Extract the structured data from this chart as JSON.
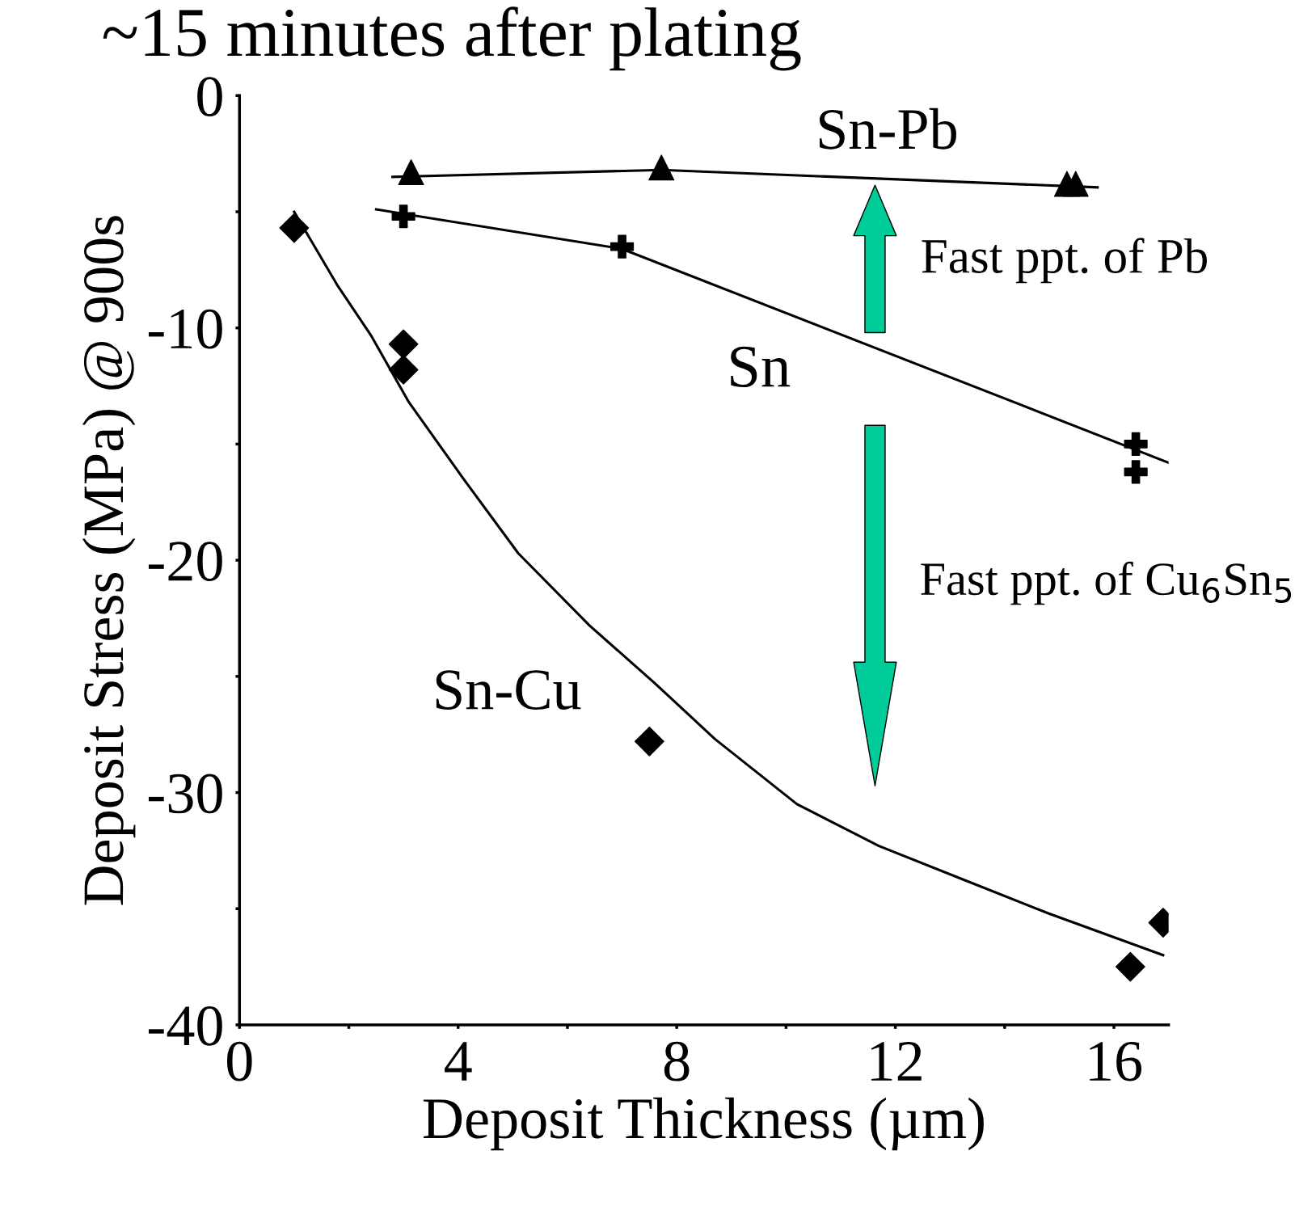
{
  "chart_data": {
    "type": "scatter",
    "title": "~15 minutes after plating",
    "xlabel": "Deposit Thickness (µm)",
    "ylabel": "Deposit Stress (MPa) @ 900s",
    "xlim": [
      0,
      17
    ],
    "ylim": [
      -40,
      0
    ],
    "xticks": [
      0,
      {
        "value": 2,
        "label": null
      },
      4,
      {
        "value": 6,
        "label": null
      },
      8,
      {
        "value": 10,
        "label": null
      },
      12,
      {
        "value": 14,
        "label": null
      },
      16
    ],
    "yticks": [
      -40,
      {
        "value": -35,
        "label": null
      },
      -30,
      {
        "value": -25,
        "label": null
      },
      -20,
      {
        "value": -15,
        "label": null
      },
      -10,
      {
        "value": -5,
        "label": null
      },
      0
    ],
    "grid": false,
    "legend": false,
    "series": [
      {
        "marker": "triangle",
        "color": "#000000",
        "x": [
          3.14,
          7.72,
          15.14,
          15.3
        ],
        "values": [
          -3.3,
          -3.1,
          -3.8,
          -3.8
        ]
      },
      {
        "type": "line",
        "marker": "none",
        "color": "#000000",
        "x": [
          2.8,
          7.72,
          15.7
        ],
        "values": [
          -3.5,
          -3.2,
          -3.95
        ]
      },
      {
        "marker": "cross",
        "color": "#000000",
        "x": [
          3.0,
          7.0,
          16.4,
          16.4
        ],
        "values": [
          -5.2,
          -6.5,
          -15.0,
          -16.2
        ]
      },
      {
        "type": "line",
        "marker": "none",
        "color": "#000000",
        "x": [
          2.5,
          7.0,
          17.0
        ],
        "values": [
          -4.9,
          -6.6,
          -15.8
        ]
      },
      {
        "type": "scatter",
        "marker": "diamond",
        "color": "#000000",
        "x": [
          1.0,
          3.0,
          3.0,
          7.5,
          16.3,
          16.9
        ],
        "values": [
          -5.7,
          -10.7,
          -11.8,
          -27.8,
          -37.5,
          -35.6
        ]
      },
      {
        "type": "line",
        "marker": "none",
        "color": "#000000",
        "x": [
          1.0,
          1.3,
          1.8,
          2.4,
          3.1,
          4.1,
          5.1,
          6.4,
          7.6,
          8.7,
          10.2,
          11.7,
          13.3,
          14.8,
          16.9
        ],
        "values": [
          -5.0,
          -6.2,
          -8.2,
          -10.3,
          -13.2,
          -16.5,
          -19.7,
          -22.8,
          -25.3,
          -27.7,
          -30.5,
          -32.3,
          -33.8,
          -35.2,
          -37.0
        ]
      }
    ],
    "annotations": [
      "Sn-Pb",
      "Sn",
      "Sn-Cu",
      "Fast ppt. of Pb",
      "Fast ppt. of Cu$_{6}$Sn$_{5}$"
    ]
  }
}
